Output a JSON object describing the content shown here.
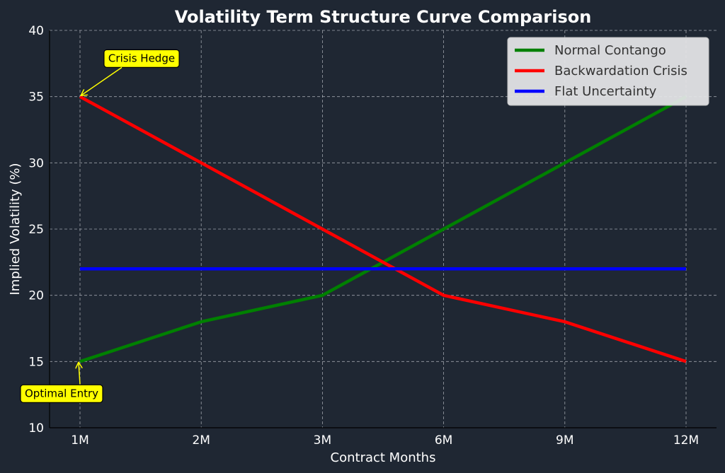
{
  "chart_data": {
    "type": "line",
    "title": "Volatility Term Structure Curve Comparison",
    "xlabel": "Contract Months",
    "ylabel": "Implied Volatility (%)",
    "categories": [
      "1M",
      "2M",
      "3M",
      "6M",
      "9M",
      "12M"
    ],
    "ylim": [
      10,
      40
    ],
    "yticks": [
      "10",
      "15",
      "20",
      "25",
      "30",
      "35",
      "40"
    ],
    "grid": true,
    "legend_position": "top-right",
    "series": [
      {
        "name": "Normal Contango",
        "color": "#008000",
        "values": [
          15,
          18,
          20,
          25,
          30,
          35
        ]
      },
      {
        "name": "Backwardation Crisis",
        "color": "#ff0000",
        "values": [
          35,
          30,
          25,
          20,
          18,
          15
        ]
      },
      {
        "name": "Flat Uncertainty",
        "color": "#0000ff",
        "values": [
          22,
          22,
          22,
          22,
          22,
          22
        ]
      }
    ],
    "annotations": [
      {
        "text": "Crisis Hedge",
        "x": "1M",
        "y": 35,
        "text_x": 1.35,
        "text_y": 37.9
      },
      {
        "text": "Optimal Entry",
        "x": "1M",
        "y": 15,
        "text_x": 0.85,
        "text_y": 12.6
      }
    ]
  }
}
